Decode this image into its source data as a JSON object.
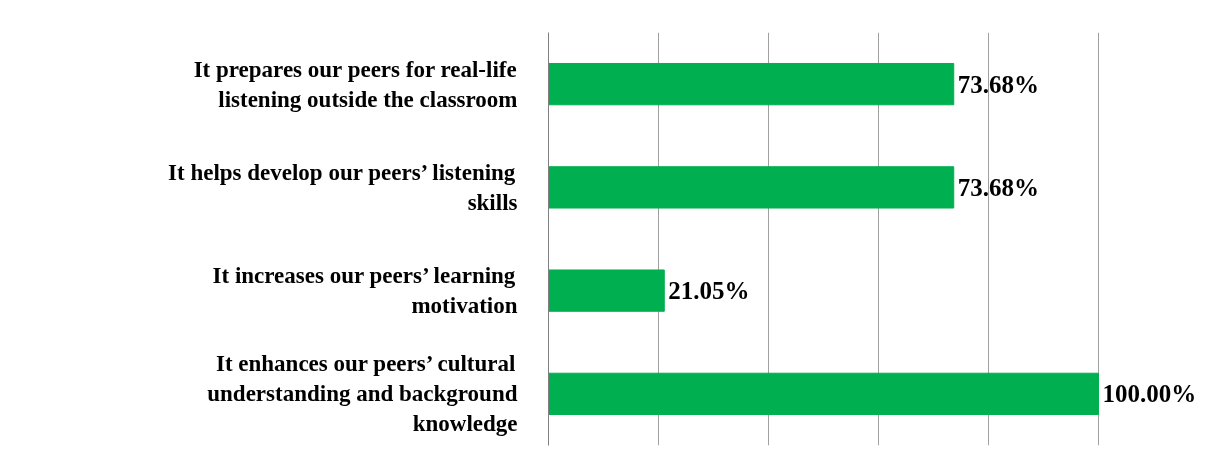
{
  "chart_data": {
    "type": "bar",
    "orientation": "horizontal",
    "categories": [
      "It prepares our peers for real-life\nlistening outside the classroom",
      "It helps develop our peers’ listening\nskills",
      "It increases our peers’ learning\nmotivation",
      "It enhances our peers’ cultural\nunderstanding and background\nknowledge"
    ],
    "values": [
      73.68,
      73.68,
      21.05,
      100.0
    ],
    "value_labels": [
      "73.68%",
      "73.68%",
      "21.05%",
      "100.00%"
    ],
    "color": "#00b050",
    "grid": "x",
    "tick_labels": "y"
  }
}
